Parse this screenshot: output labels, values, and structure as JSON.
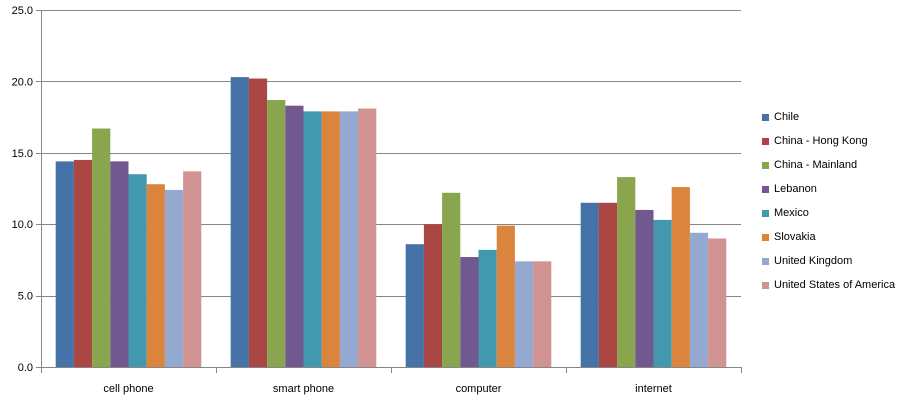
{
  "chart_data": {
    "type": "bar",
    "categories": [
      "cell phone",
      "smart phone",
      "computer",
      "internet"
    ],
    "series": [
      {
        "name": "Chile",
        "color": "#4572A7",
        "values": [
          14.4,
          20.3,
          8.6,
          11.5
        ]
      },
      {
        "name": "China - Hong Kong",
        "color": "#AA4643",
        "values": [
          14.5,
          20.2,
          10.0,
          11.5
        ]
      },
      {
        "name": "China - Mainland",
        "color": "#89A54E",
        "values": [
          16.7,
          18.7,
          12.2,
          13.3
        ]
      },
      {
        "name": "Lebanon",
        "color": "#71588F",
        "values": [
          14.4,
          18.3,
          7.7,
          11.0
        ]
      },
      {
        "name": "Mexico",
        "color": "#4198AF",
        "values": [
          13.5,
          17.9,
          8.2,
          10.3
        ]
      },
      {
        "name": "Slovakia",
        "color": "#DB843D",
        "values": [
          12.8,
          17.9,
          9.9,
          12.6
        ]
      },
      {
        "name": "United Kingdom",
        "color": "#93A9CF",
        "values": [
          12.4,
          17.9,
          7.4,
          9.4
        ]
      },
      {
        "name": "United States of America",
        "color": "#D19392",
        "values": [
          13.7,
          18.1,
          7.4,
          9.0
        ]
      }
    ],
    "ylim": [
      0,
      25
    ],
    "yticks": [
      "0.0",
      "5.0",
      "10.0",
      "15.0",
      "20.0",
      "25.0"
    ],
    "grid": true,
    "legend_position": "right",
    "title": "",
    "xlabel": "",
    "ylabel": ""
  }
}
